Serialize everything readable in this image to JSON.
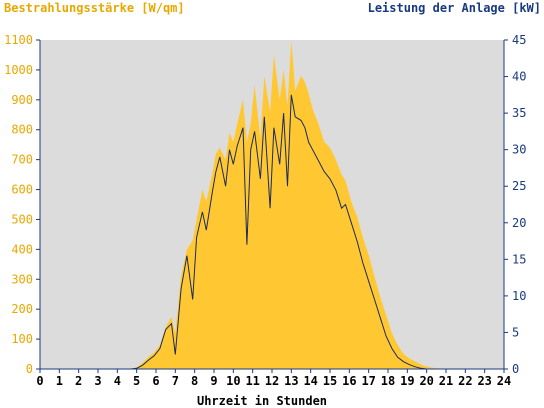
{
  "chart_data": {
    "type": "area",
    "title": "",
    "ylabel_left": "Bestrahlungsstärke [W/qm]",
    "ylabel_right": "Leistung der Anlage [kW]",
    "xlabel": "Uhrzeit in Stunden",
    "xlim": [
      0,
      24
    ],
    "ylim_left": [
      0,
      1100
    ],
    "ylim_right": [
      0,
      45
    ],
    "x_ticks": [
      "0",
      "1",
      "2",
      "3",
      "4",
      "5",
      "6",
      "7",
      "8",
      "9",
      "10",
      "11",
      "12",
      "13",
      "14",
      "15",
      "16",
      "17",
      "18",
      "19",
      "20",
      "21",
      "22",
      "23",
      "24"
    ],
    "y_ticks_left": [
      "0",
      "100",
      "200",
      "300",
      "400",
      "500",
      "600",
      "700",
      "800",
      "900",
      "1000",
      "1100"
    ],
    "y_ticks_right": [
      "0",
      "5",
      "10",
      "15",
      "20",
      "25",
      "30",
      "35",
      "40",
      "45"
    ],
    "grid": false,
    "colors": {
      "plot_background": "#dcdcdc",
      "irradiance_fill": "#ffc832",
      "power_line": "#1a2a5a",
      "left_axis_text": "#e8a800",
      "right_axis_text": "#1a3a80"
    },
    "series": [
      {
        "name": "Bestrahlungsstärke",
        "axis": "left",
        "style": "filled-area",
        "x": [
          0,
          4.7,
          5.0,
          5.3,
          5.6,
          5.9,
          6.2,
          6.5,
          6.8,
          7.0,
          7.3,
          7.6,
          7.9,
          8.1,
          8.4,
          8.6,
          8.9,
          9.1,
          9.3,
          9.6,
          9.8,
          10.0,
          10.2,
          10.5,
          10.7,
          10.9,
          11.1,
          11.4,
          11.6,
          11.9,
          12.1,
          12.4,
          12.6,
          12.8,
          13.0,
          13.2,
          13.5,
          13.7,
          13.9,
          14.1,
          14.4,
          14.7,
          15.0,
          15.3,
          15.6,
          15.8,
          16.1,
          16.4,
          16.7,
          17.0,
          17.3,
          17.6,
          17.9,
          18.2,
          18.5,
          18.8,
          19.1,
          19.4,
          19.7,
          20.0,
          20.3,
          20.6,
          21.0,
          24
        ],
        "y": [
          0,
          0,
          5,
          20,
          40,
          55,
          80,
          140,
          175,
          120,
          310,
          400,
          430,
          500,
          600,
          560,
          650,
          720,
          740,
          700,
          790,
          760,
          820,
          900,
          760,
          820,
          950,
          770,
          980,
          860,
          1050,
          900,
          1000,
          880,
          1100,
          930,
          980,
          960,
          920,
          870,
          820,
          760,
          740,
          700,
          650,
          630,
          560,
          510,
          440,
          380,
          310,
          240,
          180,
          120,
          80,
          50,
          35,
          25,
          15,
          8,
          4,
          2,
          0,
          0
        ]
      },
      {
        "name": "Leistung der Anlage",
        "axis": "right",
        "style": "line",
        "x": [
          0,
          4.7,
          5.0,
          5.3,
          5.6,
          5.9,
          6.2,
          6.5,
          6.8,
          7.0,
          7.3,
          7.6,
          7.9,
          8.1,
          8.4,
          8.6,
          8.9,
          9.1,
          9.3,
          9.6,
          9.8,
          10.0,
          10.2,
          10.5,
          10.7,
          10.9,
          11.1,
          11.4,
          11.6,
          11.9,
          12.1,
          12.4,
          12.6,
          12.8,
          13.0,
          13.2,
          13.5,
          13.7,
          13.9,
          14.1,
          14.4,
          14.7,
          15.0,
          15.3,
          15.6,
          15.8,
          16.1,
          16.4,
          16.7,
          17.0,
          17.3,
          17.6,
          17.9,
          18.2,
          18.5,
          18.8,
          19.1,
          19.4,
          19.7,
          20.0,
          20.3,
          20.6,
          21.0,
          24
        ],
        "y": [
          0,
          0,
          0.1,
          0.5,
          1.2,
          1.8,
          2.8,
          5.4,
          6.2,
          2.0,
          11.0,
          15.5,
          9.5,
          18.0,
          21.5,
          19.0,
          24.0,
          27.0,
          29.0,
          25.0,
          30.0,
          28.0,
          30.5,
          33.0,
          17.0,
          30.0,
          32.5,
          26.0,
          34.5,
          22.0,
          33.0,
          28.0,
          35.0,
          25.0,
          37.5,
          34.5,
          34.0,
          33.0,
          31.0,
          30.0,
          28.5,
          27.0,
          26.0,
          24.5,
          22.0,
          22.5,
          20.0,
          17.5,
          14.5,
          12.0,
          9.5,
          7.0,
          4.5,
          2.8,
          1.6,
          1.0,
          0.6,
          0.3,
          0.1,
          0,
          0,
          0,
          0,
          0
        ]
      }
    ]
  }
}
